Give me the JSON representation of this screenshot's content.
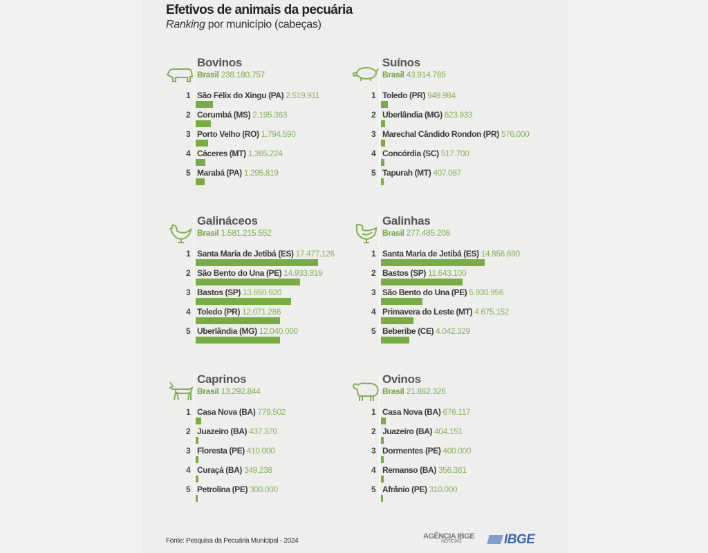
{
  "header": {
    "title": "Efetivos de animais da pecuária",
    "subtitle_italic": "Ranking",
    "subtitle_rest": " por município (cabeças)"
  },
  "brasil_label": "Brasil",
  "colors": {
    "bar": "#76ae3f",
    "value": "#86b556",
    "brasil": "#6fa83a",
    "icon": "#7fb04c"
  },
  "chart_data": [
    {
      "type": "bar",
      "orientation": "horizontal",
      "title": "Bovinos",
      "icon": "cow-icon",
      "brasil": "238.180.757",
      "categories": [
        "São Félix do Xingu (PA)",
        "Corumbá (MS)",
        "Porto Velho (RO)",
        "Cáceres (MT)",
        "Marabá (PA)"
      ],
      "labels": [
        "2.519.911",
        "2.195.363",
        "1.794.590",
        "1.365.224",
        "1.295.819"
      ],
      "values": [
        2519911,
        2195363,
        1794590,
        1365224,
        1295819
      ]
    },
    {
      "type": "bar",
      "orientation": "horizontal",
      "title": "Suínos",
      "icon": "pig-icon",
      "brasil": "43.914.785",
      "categories": [
        "Toledo (PR)",
        "Uberlândia (MG)",
        "Marechal Cândido Rondon (PR)",
        "Concórdia (SC)",
        "Tapurah (MT)"
      ],
      "labels": [
        "949.984",
        "623.933",
        "576.000",
        "517.700",
        "407.087"
      ],
      "values": [
        949984,
        623933,
        576000,
        517700,
        407087
      ]
    },
    {
      "type": "bar",
      "orientation": "horizontal",
      "title": "Galináceos",
      "icon": "rooster-icon",
      "brasil": "1.581.215.552",
      "categories": [
        "Santa Maria de Jetibá (ES)",
        "São Bento do Una (PE)",
        "Bastos (SP)",
        "Toledo (PR)",
        "Uberlândia (MG)"
      ],
      "labels": [
        "17.477.126",
        "14.933.819",
        "13.650.920",
        "12.071.286",
        "12.040.000"
      ],
      "values": [
        17477126,
        14933819,
        13650920,
        12071286,
        12040000
      ]
    },
    {
      "type": "bar",
      "orientation": "horizontal",
      "title": "Galinhas",
      "icon": "hen-icon",
      "brasil": "277.485.208",
      "categories": [
        "Santa Maria de Jetibá (ES)",
        "Bastos (SP)",
        "São Bento do Una (PE)",
        "Primavera do Leste (MT)",
        "Beberibe (CE)"
      ],
      "labels": [
        "14.856.690",
        "11.643.100",
        "5.930.956",
        "4.675.152",
        "4.042.329"
      ],
      "values": [
        14856690,
        11643100,
        5930956,
        4675152,
        4042329
      ]
    },
    {
      "type": "bar",
      "orientation": "horizontal",
      "title": "Caprinos",
      "icon": "goat-icon",
      "brasil": "13.292.844",
      "categories": [
        "Casa Nova (BA)",
        "Juazeiro (BA)",
        "Floresta (PE)",
        "Curaçá (BA)",
        "Petrolina (PE)"
      ],
      "labels": [
        "779.502",
        "437.370",
        "410.000",
        "349.238",
        "300.000"
      ],
      "values": [
        779502,
        437370,
        410000,
        349238,
        300000
      ]
    },
    {
      "type": "bar",
      "orientation": "horizontal",
      "title": "Ovinos",
      "icon": "sheep-icon",
      "brasil": "21.862.326",
      "categories": [
        "Casa Nova (BA)",
        "Juazeiro (BA)",
        "Dormentes (PE)",
        "Remanso (BA)",
        "Afrânio (PE)"
      ],
      "labels": [
        "676.117",
        "404.151",
        "400.000",
        "356.381",
        "310.000"
      ],
      "values": [
        676117,
        404151,
        400000,
        356381,
        310000
      ]
    }
  ],
  "footer": {
    "source": "Fonte: Pesquisa da Pecuária Municipal - 2024",
    "agencia": "AGÊNCIA IBGE",
    "agencia_sub": "NOTÍCIAS",
    "ibge": "IBGE"
  }
}
